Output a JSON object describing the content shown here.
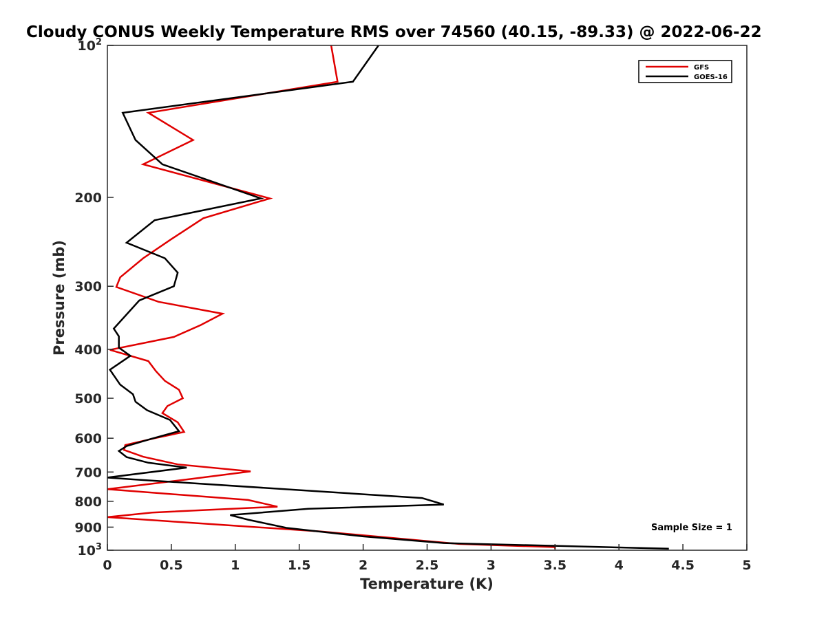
{
  "chart_data": {
    "type": "line",
    "title": "Cloudy CONUS Weekly Temperature RMS over 74560 (40.15, -89.33) @ 2022-06-22",
    "xlabel": "Temperature (K)",
    "ylabel": "Pressure (mb)",
    "xlim": [
      0,
      5
    ],
    "ylim": [
      100,
      1000
    ],
    "y_scale": "log",
    "y_reversed": true,
    "x_ticks": [
      "0",
      "0.5",
      "1",
      "1.5",
      "2",
      "2.5",
      "3",
      "3.5",
      "4",
      "4.5",
      "5"
    ],
    "y_ticks": [
      {
        "value": 100,
        "base": "10",
        "exp": "2"
      },
      {
        "value": 200,
        "label": "200"
      },
      {
        "value": 300,
        "label": "300"
      },
      {
        "value": 400,
        "label": "400"
      },
      {
        "value": 500,
        "label": "500"
      },
      {
        "value": 600,
        "label": "600"
      },
      {
        "value": 700,
        "label": "700"
      },
      {
        "value": 800,
        "label": "800"
      },
      {
        "value": 900,
        "label": "900"
      },
      {
        "value": 1000,
        "base": "10",
        "exp": "3"
      }
    ],
    "grid": false,
    "legend_position": "top-right",
    "annotation": "Sample Size = 1",
    "series": [
      {
        "name": "GFS",
        "color": "#e00000",
        "points": [
          [
            1.75,
            100
          ],
          [
            1.8,
            118
          ],
          [
            0.32,
            136
          ],
          [
            0.67,
            154
          ],
          [
            0.28,
            172
          ],
          [
            1.27,
            201
          ],
          [
            0.75,
            220
          ],
          [
            0.5,
            242
          ],
          [
            0.28,
            264
          ],
          [
            0.1,
            288
          ],
          [
            0.07,
            301
          ],
          [
            0.4,
            322
          ],
          [
            0.9,
            340
          ],
          [
            0.73,
            358
          ],
          [
            0.52,
            378
          ],
          [
            0.02,
            401
          ],
          [
            0.32,
            422
          ],
          [
            0.38,
            442
          ],
          [
            0.45,
            462
          ],
          [
            0.56,
            481
          ],
          [
            0.59,
            500
          ],
          [
            0.47,
            518
          ],
          [
            0.43,
            535
          ],
          [
            0.55,
            558
          ],
          [
            0.6,
            583
          ],
          [
            0.37,
            600
          ],
          [
            0.14,
            619
          ],
          [
            0.13,
            633
          ],
          [
            0.28,
            653
          ],
          [
            0.55,
            676
          ],
          [
            1.12,
            698
          ],
          [
            0.66,
            722
          ],
          [
            0.0,
            757
          ],
          [
            1.1,
            795
          ],
          [
            1.33,
            820
          ],
          [
            0.35,
            842
          ],
          [
            0.0,
            860
          ],
          [
            0.47,
            876
          ],
          [
            1.67,
            918
          ],
          [
            2.75,
            972
          ],
          [
            3.5,
            986
          ],
          [
            3.5,
            993
          ]
        ]
      },
      {
        "name": "GOES-16",
        "color": "#000000",
        "points": [
          [
            2.12,
            100
          ],
          [
            1.92,
            118
          ],
          [
            0.12,
            136
          ],
          [
            0.22,
            154
          ],
          [
            0.43,
            172
          ],
          [
            1.2,
            201
          ],
          [
            0.37,
            222
          ],
          [
            0.15,
            246
          ],
          [
            0.45,
            264
          ],
          [
            0.55,
            282
          ],
          [
            0.52,
            300
          ],
          [
            0.25,
            320
          ],
          [
            0.05,
            364
          ],
          [
            0.09,
            377
          ],
          [
            0.09,
            397
          ],
          [
            0.18,
            412
          ],
          [
            0.02,
            439
          ],
          [
            0.1,
            470
          ],
          [
            0.2,
            491
          ],
          [
            0.22,
            508
          ],
          [
            0.31,
            528
          ],
          [
            0.49,
            552
          ],
          [
            0.56,
            581
          ],
          [
            0.34,
            602
          ],
          [
            0.15,
            622
          ],
          [
            0.09,
            636
          ],
          [
            0.15,
            654
          ],
          [
            0.32,
            671
          ],
          [
            0.62,
            686
          ],
          [
            0.0,
            718
          ],
          [
            0.2,
            724
          ],
          [
            2.46,
            788
          ],
          [
            2.63,
            812
          ],
          [
            1.57,
            828
          ],
          [
            0.96,
            852
          ],
          [
            1.1,
            870
          ],
          [
            1.4,
            903
          ],
          [
            2.0,
            939
          ],
          [
            2.63,
            968
          ],
          [
            4.39,
            993
          ]
        ]
      }
    ]
  }
}
